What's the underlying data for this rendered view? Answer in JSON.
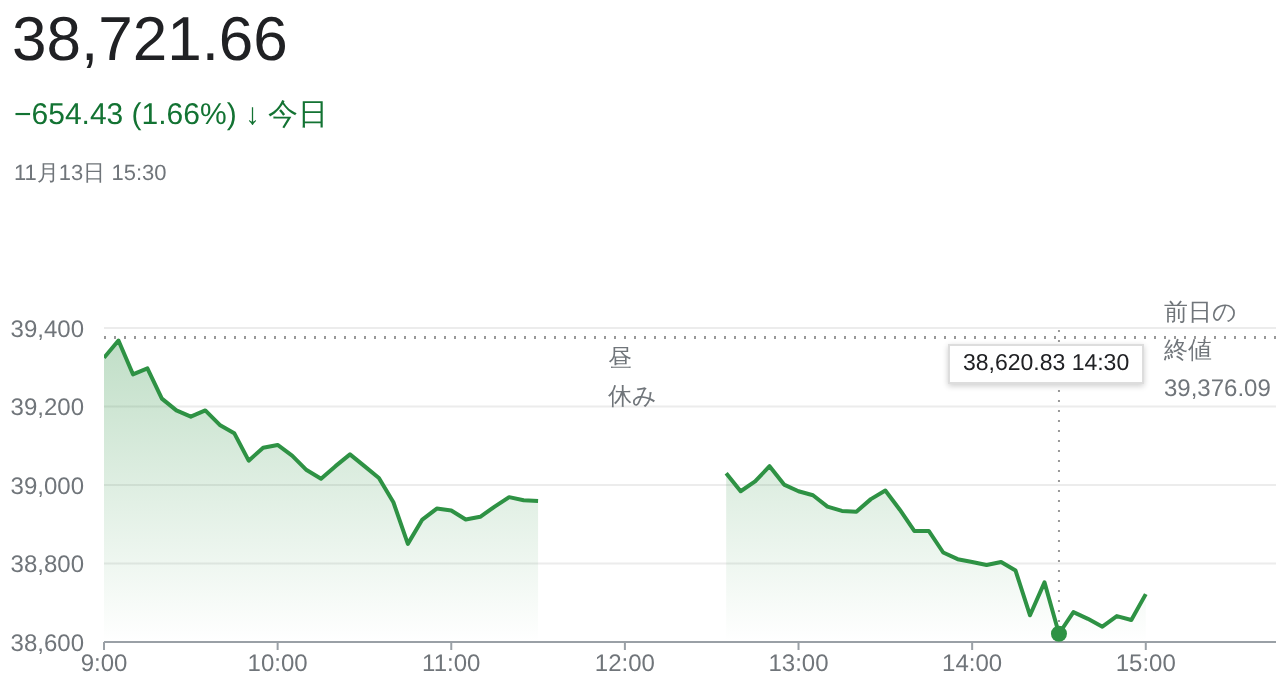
{
  "chart_data": {
    "type": "area",
    "title": "38,721.66",
    "subtitle": "−654.43 (1.66%) ↓ 今日",
    "annotations": [
      "昼休み",
      "11月13日 15:30",
      "38,620.83 14:30"
    ],
    "x": [
      9,
      9.0833,
      9.1667,
      9.25,
      9.3333,
      9.4167,
      9.5,
      9.5833,
      9.6667,
      9.75,
      9.8333,
      9.9167,
      10,
      10.0833,
      10.1667,
      10.25,
      10.3333,
      10.4167,
      10.5,
      10.5833,
      10.6667,
      10.75,
      10.8333,
      10.9167,
      11,
      11.0833,
      11.1667,
      11.25,
      11.3333,
      11.4167,
      11.5,
      12,
      12.5833,
      12.6667,
      12.75,
      12.8333,
      12.9167,
      13,
      13.0833,
      13.1667,
      13.25,
      13.3333,
      13.4167,
      13.5,
      13.5833,
      13.6667,
      13.75,
      13.8333,
      13.9167,
      14,
      14.0833,
      14.1667,
      14.25,
      14.3333,
      14.4167,
      14.5,
      14.5833,
      14.6667,
      14.75,
      14.8333,
      14.9167,
      15
    ],
    "series": [
      {
        "color": "#2e9244",
        "values": [
          39324,
          39368,
          39282,
          39297,
          39220,
          39190,
          39174,
          39190,
          39153,
          39132,
          39062,
          39095,
          39102,
          39075,
          39038,
          39016,
          39048,
          39078,
          39048,
          39018,
          38956,
          38850,
          38912,
          38940,
          38935,
          38912,
          38919,
          38945,
          38969,
          38961,
          38959,
          null,
          39030,
          38984,
          39009,
          39048,
          39001,
          38984,
          38974,
          38945,
          38934,
          38932,
          38964,
          38986,
          38937,
          38883,
          38883,
          38828,
          38811,
          38804,
          38796,
          38804,
          38782,
          38668,
          38752,
          38621,
          38676,
          38659,
          38639,
          38666,
          38656,
          38722
        ]
      }
    ],
    "xlim": [
      9,
      15.75
    ],
    "xticks": [
      {
        "value": 9,
        "label": "9:00"
      },
      {
        "value": 10,
        "label": "10:00"
      },
      {
        "value": 11,
        "label": "11:00"
      },
      {
        "value": 12,
        "label": "12:00"
      },
      {
        "value": 13,
        "label": "13:00"
      },
      {
        "value": 14,
        "label": "14:00"
      },
      {
        "value": 15,
        "label": "15:00"
      }
    ],
    "ylim": [
      38600,
      39400
    ],
    "yticks": [
      {
        "value": 38600,
        "label": "38,600"
      },
      {
        "value": 38800,
        "label": "38,800"
      },
      {
        "value": 39000,
        "label": "39,000"
      },
      {
        "value": 39200,
        "label": "39,200"
      },
      {
        "value": 39400,
        "label": "39,400"
      }
    ],
    "ref_lines": [
      {
        "axis": "y",
        "value": 39376.09,
        "label": "前日の終値\n39,376.09",
        "line_style": "dotted",
        "color": "#999999"
      },
      {
        "axis": "x",
        "value": 14.5,
        "label": null,
        "line_style": "dotted",
        "color": "#999999"
      }
    ],
    "grid": "y",
    "marker": "none",
    "line_style": "solid"
  }
}
